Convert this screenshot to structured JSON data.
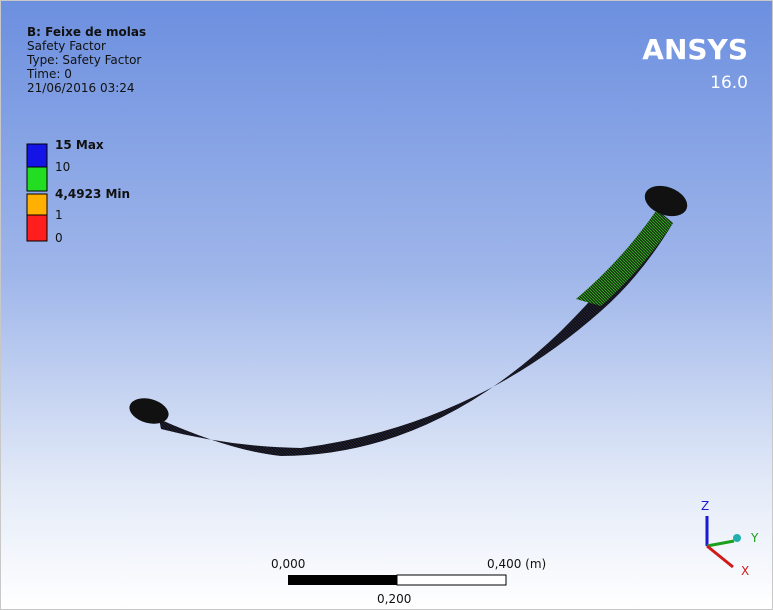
{
  "header": {
    "title": "B: Feixe de molas",
    "lines": [
      "Safety Factor",
      "Type: Safety Factor",
      "Time: 0",
      "21/06/2016 03:24"
    ]
  },
  "logo": {
    "name": "ANSYS",
    "version": "16.0"
  },
  "legend": {
    "items": [
      {
        "label": "15 Max",
        "color": "#1414e6"
      },
      {
        "label": "10",
        "color": "#22dd22"
      },
      {
        "label": "4,4923 Min",
        "color": "#ffb000"
      },
      {
        "label": "1",
        "color": "#ff1e1e"
      },
      {
        "label": "0"
      }
    ]
  },
  "scale_bar": {
    "start": "0,000",
    "end": "0,400 (m)",
    "middle": "0,200"
  },
  "triad": {
    "z": "Z",
    "y": "Y",
    "x": "X"
  }
}
